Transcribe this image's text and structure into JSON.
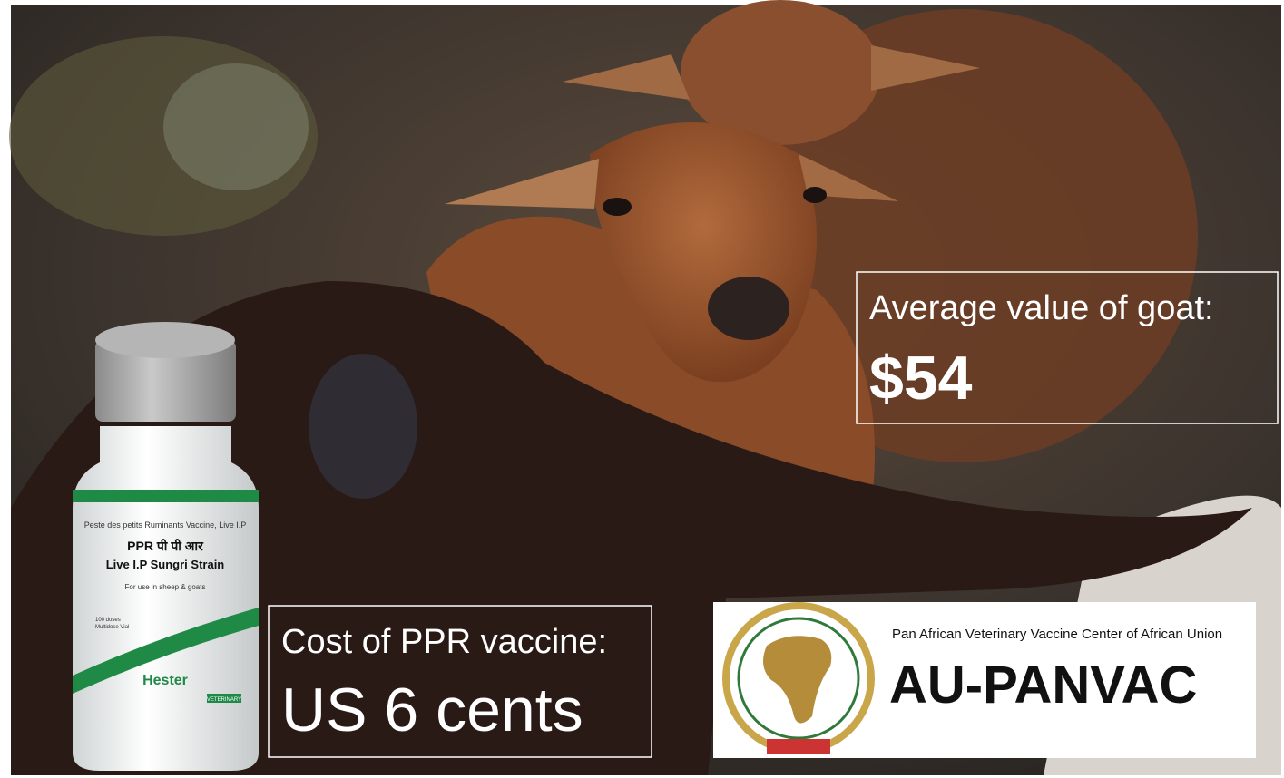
{
  "callouts": [
    {
      "label": "Average value of goat:",
      "value": "$54"
    },
    {
      "label": "Cost of PPR vaccine:",
      "value": "US 6 cents"
    }
  ],
  "vial": {
    "line1": "Peste des petits Ruminants Vaccine, Live I.P",
    "line2": "PPR पी पी आर",
    "line3": "Live I.P Sungri Strain",
    "line4": "For use in sheep & goats",
    "line5": "100 doses",
    "line6": "Multidose Vial",
    "brand": "Hester",
    "tag": "VETERINARY"
  },
  "logo": {
    "subtitle": "Pan African Veterinary Vaccine Center of African Union",
    "name": "AU-PANVAC"
  }
}
